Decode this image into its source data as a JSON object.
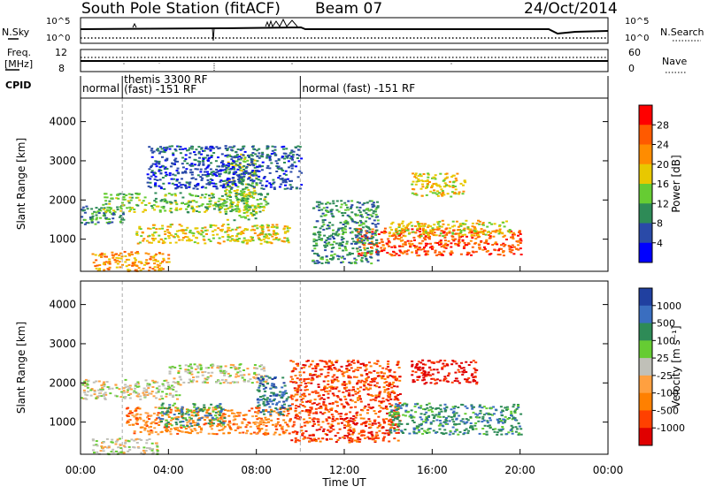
{
  "header": {
    "title": "South Pole Station (fitACF)",
    "beam": "Beam 07",
    "date": "24/Oct/2014"
  },
  "top_panels": {
    "nsky_label": "N.Sky",
    "nsearch_label": "N.Search",
    "freq_label_1": "Freq.",
    "freq_label_2": "[MHz]",
    "nave_label": "Nave",
    "cpid_label": "CPID",
    "nsky_ticks": [
      "10^5",
      "10^0"
    ],
    "nsearch_ticks": [
      "10^5",
      "10^0"
    ],
    "freq_ticks": [
      "12",
      "8"
    ],
    "nave_ticks": [
      "60",
      "0"
    ],
    "cpid_segments": [
      {
        "label": "normal",
        "label2": "",
        "start": 0,
        "end": 1.9
      },
      {
        "label": "themis 3300 RF",
        "label2": "(fast) -151 RF",
        "start": 1.9,
        "end": 10.0
      },
      {
        "label": "normal (fast) -151 RF",
        "label2": "",
        "start": 10.0,
        "end": 24
      }
    ]
  },
  "x_axis": {
    "label": "Time UT",
    "ticks": [
      "00:00",
      "04:00",
      "08:00",
      "12:00",
      "16:00",
      "20:00",
      "00:00"
    ],
    "tick_hours": [
      0,
      4,
      8,
      12,
      16,
      20,
      24
    ]
  },
  "power_panel": {
    "ylabel": "Slant Range [km]",
    "yticks": [
      "1000",
      "2000",
      "3000",
      "4000"
    ],
    "colorbar_label": "Power [dB]",
    "colorbar_ticks": [
      "4",
      "8",
      "12",
      "16",
      "20",
      "24",
      "28"
    ],
    "colors": [
      "#0000ff",
      "#2a4aa8",
      "#2e8b57",
      "#66cc33",
      "#e8c800",
      "#ff8c00",
      "#ff5a00",
      "#ff0000"
    ]
  },
  "velocity_panel": {
    "ylabel": "Slant Range [km]",
    "yticks": [
      "1000",
      "2000",
      "3000",
      "4000"
    ],
    "colorbar_label": "Velocity [m s⁻¹]",
    "colorbar_ticks": [
      "1000",
      "500",
      "100",
      "25",
      "-25",
      "-100",
      "-500",
      "-1000"
    ],
    "colors": [
      "#2040a0",
      "#3a6ec0",
      "#2e8b57",
      "#66cc33",
      "#c0c0b8",
      "#ffa040",
      "#ff8000",
      "#ff4000",
      "#e00000"
    ]
  },
  "chart_data": {
    "type": "heatmap",
    "x_range_hours": [
      0,
      24
    ],
    "y_range_km": [
      180,
      4600
    ],
    "power_regions": [
      {
        "t0": 0.0,
        "t1": 2.0,
        "r0": 1400,
        "r1": 1900,
        "level": 2
      },
      {
        "t0": 1.0,
        "t1": 8.5,
        "r0": 1700,
        "r1": 2200,
        "level": 3
      },
      {
        "t0": 2.5,
        "t1": 9.5,
        "r0": 900,
        "r1": 1400,
        "level": 4
      },
      {
        "t0": 6.5,
        "t1": 8.0,
        "r0": 1500,
        "r1": 3200,
        "level": 3
      },
      {
        "t0": 3.0,
        "t1": 10.0,
        "r0": 2300,
        "r1": 3400,
        "level": 1
      },
      {
        "t0": 12.5,
        "t1": 20.0,
        "r0": 600,
        "r1": 1300,
        "level": 6
      },
      {
        "t0": 14.0,
        "t1": 19.5,
        "r0": 1100,
        "r1": 1500,
        "level": 4
      },
      {
        "t0": 15.0,
        "t1": 17.5,
        "r0": 2100,
        "r1": 2700,
        "level": 4
      },
      {
        "t0": 10.5,
        "t1": 13.5,
        "r0": 400,
        "r1": 2000,
        "level": 2
      },
      {
        "t0": 0.5,
        "t1": 4.0,
        "r0": 200,
        "r1": 700,
        "level": 5
      }
    ],
    "velocity_regions": [
      {
        "t0": 0.0,
        "t1": 4.5,
        "r0": 1600,
        "r1": 2100,
        "level": 4
      },
      {
        "t0": 4.0,
        "t1": 8.5,
        "r0": 2000,
        "r1": 2500,
        "level": 4
      },
      {
        "t0": 2.0,
        "t1": 9.5,
        "r0": 700,
        "r1": 1400,
        "level": 2
      },
      {
        "t0": 3.5,
        "t1": 6.5,
        "r0": 900,
        "r1": 1500,
        "level": 6
      },
      {
        "t0": 8.0,
        "t1": 9.5,
        "r0": 1200,
        "r1": 2200,
        "level": 7
      },
      {
        "t0": 9.5,
        "t1": 14.5,
        "r0": 500,
        "r1": 2600,
        "level": 1
      },
      {
        "t0": 14.0,
        "t1": 20.0,
        "r0": 700,
        "r1": 1500,
        "level": 6
      },
      {
        "t0": 15.0,
        "t1": 18.0,
        "r0": 2000,
        "r1": 2600,
        "level": 0
      },
      {
        "t0": 0.5,
        "t1": 3.5,
        "r0": 200,
        "r1": 600,
        "level": 4
      }
    ]
  }
}
